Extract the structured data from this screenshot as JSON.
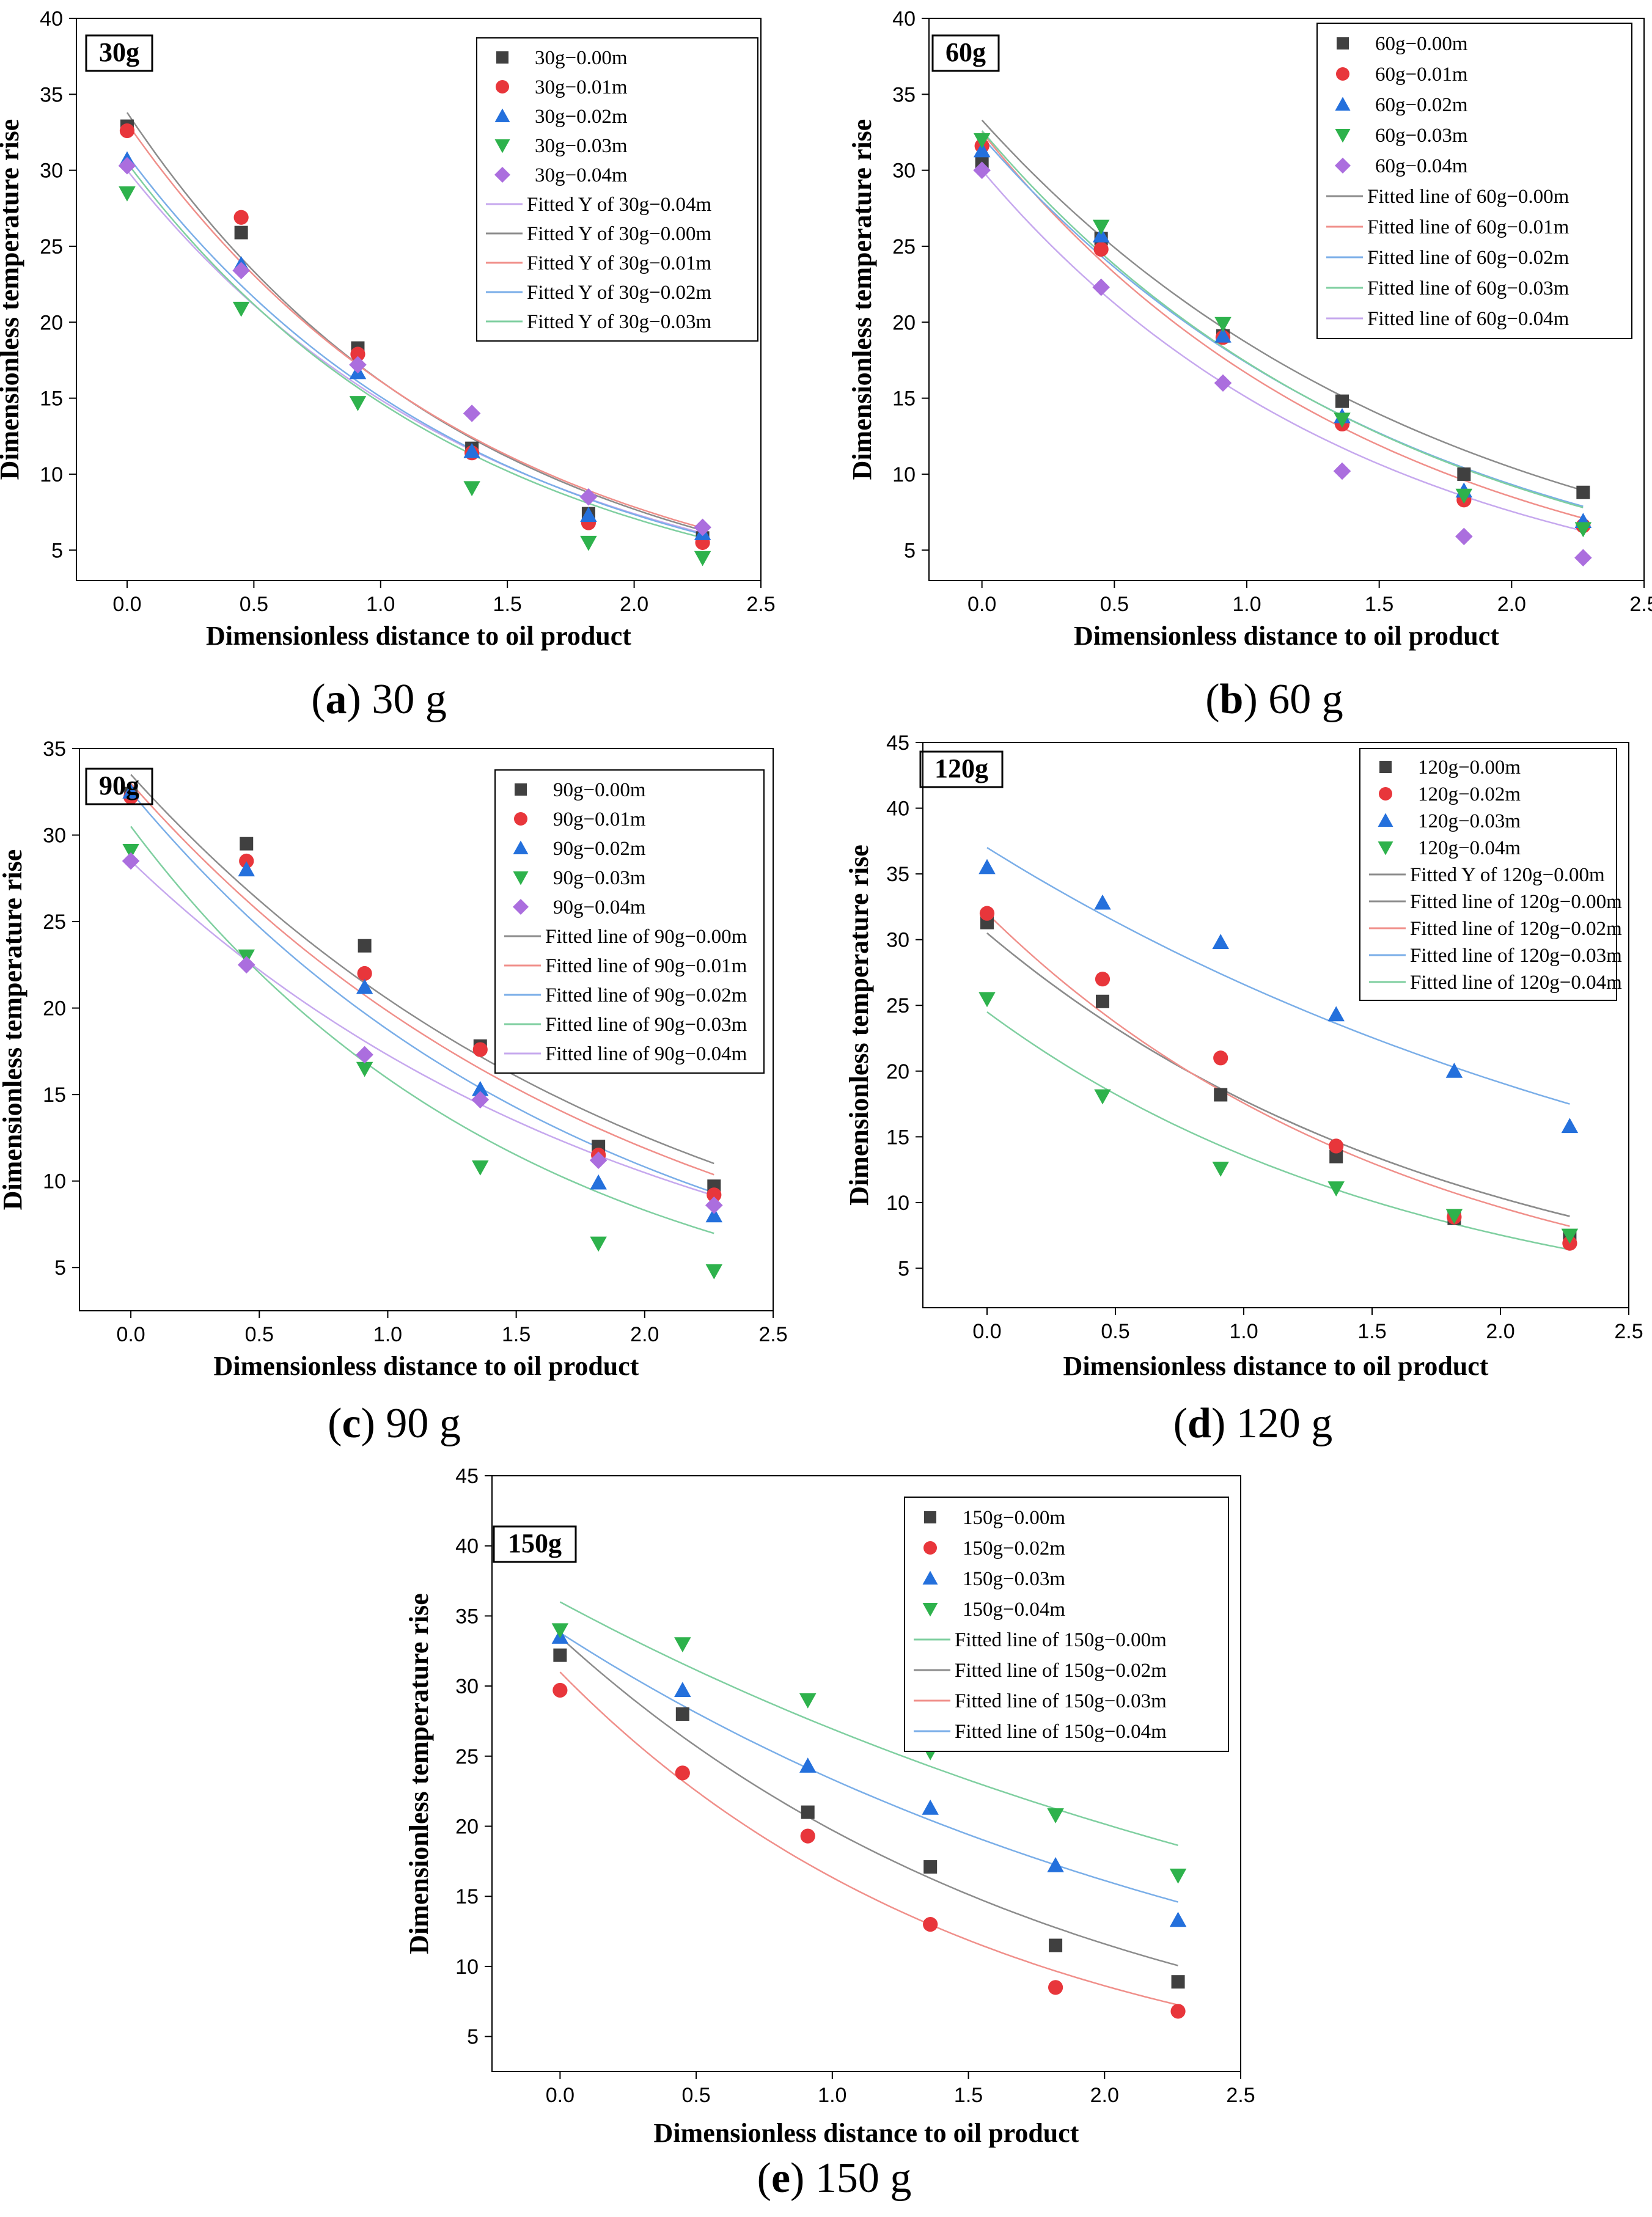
{
  "figure": {
    "panels": [
      {
        "id": "a",
        "letter": "a",
        "label": "30 g"
      },
      {
        "id": "b",
        "letter": "b",
        "label": "60 g"
      },
      {
        "id": "c",
        "letter": "c",
        "label": "90 g"
      },
      {
        "id": "d",
        "letter": "d",
        "label": "120 g"
      },
      {
        "id": "e",
        "letter": "e",
        "label": "150 g"
      }
    ]
  },
  "chart_data": [
    {
      "id": "a",
      "type": "scatter",
      "title": "30g",
      "xlabel": "Dimensionless distance to oil product",
      "ylabel": "Dimensionless temperature rise",
      "xlim": [
        -0.2,
        2.5
      ],
      "ylim": [
        3,
        40
      ],
      "xticks": [
        "0.0",
        "0.5",
        "1.0",
        "1.5",
        "2.0",
        "2.5"
      ],
      "yticks": [
        "5",
        "10",
        "15",
        "20",
        "25",
        "30",
        "35",
        "40"
      ],
      "x": [
        0.0,
        0.45,
        0.91,
        1.36,
        1.82,
        2.27
      ],
      "series": [
        {
          "name": "30g−0.00m",
          "marker": "square",
          "color": "#404040",
          "values": [
            32.9,
            25.9,
            18.3,
            11.7,
            7.4,
            5.8
          ]
        },
        {
          "name": "30g−0.01m",
          "marker": "circle",
          "color": "#e8363b",
          "values": [
            32.6,
            26.9,
            17.9,
            11.4,
            6.8,
            5.5
          ]
        },
        {
          "name": "30g−0.02m",
          "marker": "triangle-up",
          "color": "#2470dc",
          "values": [
            30.7,
            23.8,
            16.7,
            11.5,
            7.3,
            6.1
          ]
        },
        {
          "name": "30g−0.03m",
          "marker": "triangle-down",
          "color": "#2eb24c",
          "values": [
            28.5,
            20.9,
            14.7,
            9.1,
            5.5,
            4.5
          ]
        },
        {
          "name": "30g−0.04m",
          "marker": "diamond",
          "color": "#ab6ede",
          "values": [
            30.3,
            23.4,
            17.2,
            14.0,
            8.5,
            6.5
          ]
        }
      ],
      "fits": [
        {
          "name": "Fitted  Y of 30g−0.04m",
          "color": "#c6a8ee",
          "a": 30.0,
          "b": 0.7
        },
        {
          "name": "Fitted Y of 30g−0.00m",
          "color": "#8c8c8c",
          "a": 33.8,
          "b": 0.74
        },
        {
          "name": "Fitted Y of 30g−0.01m",
          "color": "#f08f8a",
          "a": 33.1,
          "b": 0.72
        },
        {
          "name": "Fitted Y of 30g−0.02m",
          "color": "#7aaee8",
          "a": 31.0,
          "b": 0.72
        },
        {
          "name": "Fitted Y of 30g−0.03m",
          "color": "#7fcfa0",
          "a": 30.5,
          "b": 0.73
        }
      ]
    },
    {
      "id": "b",
      "type": "scatter",
      "title": "60g",
      "xlabel": "Dimensionless distance to oil product",
      "ylabel": "Dimensionless temperature rise",
      "xlim": [
        -0.2,
        2.5
      ],
      "ylim": [
        3,
        40
      ],
      "xticks": [
        "0.0",
        "0.5",
        "1.0",
        "1.5",
        "2.0",
        "2.5"
      ],
      "yticks": [
        "5",
        "10",
        "15",
        "20",
        "25",
        "30",
        "35",
        "40"
      ],
      "x": [
        0.0,
        0.45,
        0.91,
        1.36,
        1.82,
        2.27
      ],
      "series": [
        {
          "name": "60g−0.00m",
          "marker": "square",
          "color": "#404040",
          "values": [
            30.5,
            25.5,
            19.1,
            14.8,
            10.0,
            8.8
          ]
        },
        {
          "name": "60g−0.01m",
          "marker": "circle",
          "color": "#e8363b",
          "values": [
            31.6,
            24.8,
            19.0,
            13.3,
            8.3,
            6.6
          ]
        },
        {
          "name": "60g−0.02m",
          "marker": "triangle-up",
          "color": "#2470dc",
          "values": [
            31.3,
            25.7,
            19.1,
            13.8,
            8.9,
            6.9
          ]
        },
        {
          "name": "60g−0.03m",
          "marker": "triangle-down",
          "color": "#2eb24c",
          "values": [
            32.0,
            26.3,
            19.9,
            13.6,
            8.6,
            6.4
          ]
        },
        {
          "name": "60g−0.04m",
          "marker": "diamond",
          "color": "#ab6ede",
          "values": [
            30.0,
            22.3,
            16.0,
            10.2,
            5.9,
            4.5
          ]
        }
      ],
      "fits": [
        {
          "name": "Fitted line of 60g−0.00m",
          "color": "#8c8c8c",
          "a": 33.3,
          "b": 0.58
        },
        {
          "name": "Fitted line of 60g−0.01m",
          "color": "#f08f8a",
          "a": 32.5,
          "b": 0.67
        },
        {
          "name": "Fitted line of 60g−0.02m",
          "color": "#7aaee8",
          "a": 32.2,
          "b": 0.62
        },
        {
          "name": "Fitted line of 60g−0.03m",
          "color": "#7fcfa0",
          "a": 32.6,
          "b": 0.63
        },
        {
          "name": "Fitted line of 60g−0.04m",
          "color": "#c6a8ee",
          "a": 30.0,
          "b": 0.69
        }
      ]
    },
    {
      "id": "c",
      "type": "scatter",
      "title": "90g",
      "xlabel": "Dimensionless distance to oil product",
      "ylabel": "Dimensionless temperature rise",
      "xlim": [
        -0.2,
        2.5
      ],
      "ylim": [
        2.5,
        35
      ],
      "xticks": [
        "0.0",
        "0.5",
        "1.0",
        "1.5",
        "2.0",
        "2.5"
      ],
      "yticks": [
        "5",
        "10",
        "15",
        "20",
        "25",
        "30",
        "35"
      ],
      "x": [
        0.0,
        0.45,
        0.91,
        1.36,
        1.82,
        2.27
      ],
      "series": [
        {
          "name": "90g−0.00m",
          "marker": "square",
          "color": "#404040",
          "values": [
            32.4,
            29.5,
            23.6,
            17.8,
            12.0,
            9.7
          ]
        },
        {
          "name": "90g−0.01m",
          "marker": "circle",
          "color": "#e8363b",
          "values": [
            32.2,
            28.5,
            22.0,
            17.6,
            11.5,
            9.2
          ]
        },
        {
          "name": "90g−0.02m",
          "marker": "triangle-up",
          "color": "#2470dc",
          "values": [
            32.5,
            28.0,
            21.2,
            15.3,
            9.9,
            8.0
          ]
        },
        {
          "name": "90g−0.03m",
          "marker": "triangle-down",
          "color": "#2eb24c",
          "values": [
            29.1,
            23.0,
            16.5,
            10.8,
            6.4,
            4.8
          ]
        },
        {
          "name": "90g−0.04m",
          "marker": "diamond",
          "color": "#ab6ede",
          "values": [
            28.5,
            22.5,
            17.3,
            14.7,
            11.2,
            8.6
          ]
        }
      ],
      "fits": [
        {
          "name": "Fitted line of 90g−0.00m",
          "color": "#8c8c8c",
          "a": 33.5,
          "b": 0.49
        },
        {
          "name": "Fitted line of 90g−0.01m",
          "color": "#f08f8a",
          "a": 33.0,
          "b": 0.51
        },
        {
          "name": "Fitted line of 90g−0.02m",
          "color": "#7aaee8",
          "a": 32.5,
          "b": 0.55
        },
        {
          "name": "Fitted line of 90g−0.03m",
          "color": "#7fcfa0",
          "a": 30.5,
          "b": 0.65
        },
        {
          "name": "Fitted line of 90g−0.04m",
          "color": "#c6a8ee",
          "a": 28.5,
          "b": 0.5
        }
      ]
    },
    {
      "id": "d",
      "type": "scatter",
      "title": "120g",
      "xlabel": "Dimensionless distance to oil product",
      "ylabel": "Dimensionless temperature rise",
      "xlim": [
        -0.25,
        2.5
      ],
      "ylim": [
        2,
        45
      ],
      "xticks": [
        "0.0",
        "0.5",
        "1.0",
        "1.5",
        "2.0",
        "2.5"
      ],
      "yticks": [
        "5",
        "10",
        "15",
        "20",
        "25",
        "30",
        "35",
        "40",
        "45"
      ],
      "x": [
        0.0,
        0.45,
        0.91,
        1.36,
        1.82,
        2.27
      ],
      "series": [
        {
          "name": "120g−0.00m",
          "marker": "square",
          "color": "#404040",
          "values": [
            31.3,
            25.3,
            18.2,
            13.5,
            8.8,
            7.4
          ]
        },
        {
          "name": "120g−0.02m",
          "marker": "circle",
          "color": "#e8363b",
          "values": [
            32.0,
            27.0,
            21.0,
            14.3,
            8.9,
            6.9
          ]
        },
        {
          "name": "120g−0.03m",
          "marker": "triangle-up",
          "color": "#2470dc",
          "values": [
            35.5,
            32.8,
            29.8,
            24.3,
            20.0,
            15.8
          ]
        },
        {
          "name": "120g−0.04m",
          "marker": "triangle-down",
          "color": "#2eb24c",
          "values": [
            25.5,
            18.1,
            12.6,
            11.1,
            9.0,
            7.5
          ]
        }
      ],
      "fits": [
        {
          "name": "Fitted Y of 120g−0.00m",
          "color": "#8c8c8c",
          "a": 30.5,
          "b": 0.54
        },
        {
          "name": "Fitted line of 120g−0.00m",
          "color": "#8c8c8c",
          "a": 30.5,
          "b": 0.54
        },
        {
          "name": "Fitted line of 120g−0.02m",
          "color": "#f08f8a",
          "a": 32.0,
          "b": 0.6
        },
        {
          "name": "Fitted line of 120g−0.03m",
          "color": "#7aaee8",
          "a": 37.0,
          "b": 0.33
        },
        {
          "name": "Fitted line of 120g−0.04m",
          "color": "#7fcfa0",
          "a": 24.5,
          "b": 0.59
        }
      ]
    },
    {
      "id": "e",
      "type": "scatter",
      "title": "150g",
      "xlabel": "Dimensionless distance to oil product",
      "ylabel": "Dimensionless temperature rise",
      "xlim": [
        -0.25,
        2.5
      ],
      "ylim": [
        2.5,
        45
      ],
      "xticks": [
        "0.0",
        "0.5",
        "1.0",
        "1.5",
        "2.0",
        "2.5"
      ],
      "yticks": [
        "5",
        "10",
        "15",
        "20",
        "25",
        "30",
        "35",
        "40",
        "45"
      ],
      "x": [
        0.0,
        0.45,
        0.91,
        1.36,
        1.82,
        2.27
      ],
      "series": [
        {
          "name": "150g−0.00m",
          "marker": "square",
          "color": "#404040",
          "values": [
            32.2,
            28.0,
            21.0,
            17.1,
            11.5,
            8.9
          ]
        },
        {
          "name": "150g−0.02m",
          "marker": "circle",
          "color": "#e8363b",
          "values": [
            29.7,
            23.8,
            19.3,
            13.0,
            8.5,
            6.8
          ]
        },
        {
          "name": "150g−0.03m",
          "marker": "triangle-up",
          "color": "#2470dc",
          "values": [
            33.5,
            29.7,
            24.3,
            21.3,
            17.2,
            13.3
          ]
        },
        {
          "name": "150g−0.04m",
          "marker": "triangle-down",
          "color": "#2eb24c",
          "values": [
            34.0,
            33.0,
            29.0,
            25.3,
            20.8,
            16.5
          ]
        }
      ],
      "fits": [
        {
          "name": "Fitted line of 150g−0.00m",
          "color": "#7fcfa0",
          "a": 36.0,
          "b": 0.29
        },
        {
          "name": "Fitted line of 150g−0.02m",
          "color": "#8c8c8c",
          "a": 33.5,
          "b": 0.53
        },
        {
          "name": "Fitted line of 150g−0.03m",
          "color": "#f08f8a",
          "a": 31.0,
          "b": 0.64
        },
        {
          "name": "Fitted line of 150g−0.04m",
          "color": "#7aaee8",
          "a": 33.8,
          "b": 0.37
        }
      ]
    }
  ]
}
